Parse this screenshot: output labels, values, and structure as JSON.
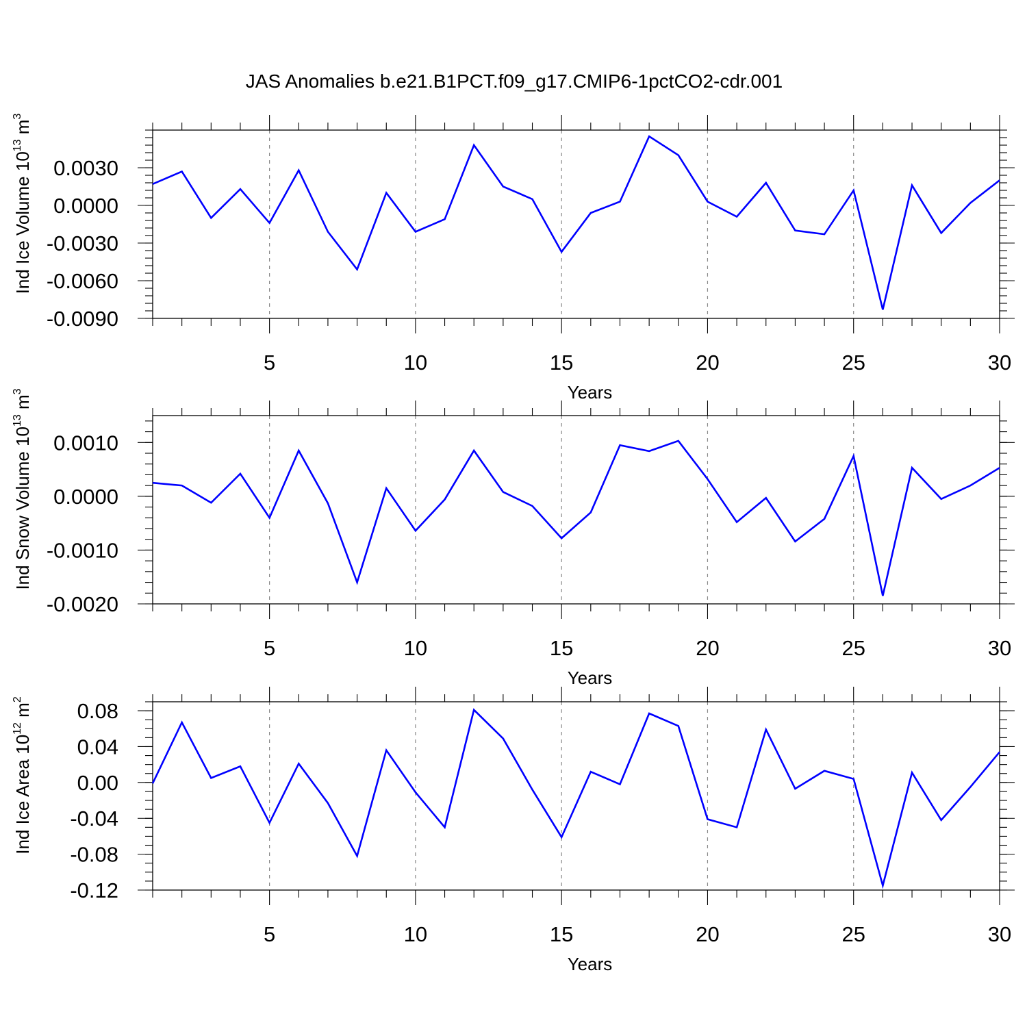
{
  "title": "JAS Anomalies b.e21.B1PCT.f09_g17.CMIP6-1pctCO2-cdr.001",
  "colors": {
    "line": "#0000ff",
    "grid": "#888888"
  },
  "chart_data": [
    {
      "type": "line",
      "xlabel": "Years",
      "ylabel_main": "Ind Ice Volume 10",
      "ylabel_exp": "13",
      "ylabel_unit": " m",
      "ylabel_unit_exp": "3",
      "xlim": [
        1,
        30
      ],
      "ylim": [
        -0.009,
        0.006
      ],
      "xticks": [
        5,
        10,
        15,
        20,
        25,
        30
      ],
      "yticks": [
        "0.0030",
        "0.0000",
        "-0.0030",
        "-0.0060",
        "-0.0090"
      ],
      "ytick_values": [
        0.003,
        0.0,
        -0.003,
        -0.006,
        -0.009
      ],
      "yminor_step": 0.0006,
      "x": [
        1,
        2,
        3,
        4,
        5,
        6,
        7,
        8,
        9,
        10,
        11,
        12,
        13,
        14,
        15,
        16,
        17,
        18,
        19,
        20,
        21,
        22,
        23,
        24,
        25,
        26,
        27,
        28,
        29,
        30
      ],
      "series": [
        {
          "values": [
            0.0017,
            0.0027,
            -0.001,
            0.0013,
            -0.0014,
            0.0028,
            -0.0021,
            -0.0051,
            0.001,
            -0.0021,
            -0.0011,
            0.0048,
            0.0015,
            0.0005,
            -0.0037,
            -0.0006,
            0.0003,
            0.0055,
            0.004,
            0.0003,
            -0.0009,
            0.0018,
            -0.002,
            -0.0023,
            0.0012,
            -0.0083,
            0.0016,
            -0.0022,
            0.0002,
            0.002
          ]
        }
      ]
    },
    {
      "type": "line",
      "xlabel": "Years",
      "ylabel_main": "Ind Snow Volume 10",
      "ylabel_exp": "13",
      "ylabel_unit": " m",
      "ylabel_unit_exp": "3",
      "xlim": [
        1,
        30
      ],
      "ylim": [
        -0.002,
        0.0015
      ],
      "xticks": [
        5,
        10,
        15,
        20,
        25,
        30
      ],
      "yticks": [
        "0.0010",
        "0.0000",
        "-0.0010",
        "-0.0020"
      ],
      "ytick_values": [
        0.001,
        0.0,
        -0.001,
        -0.002
      ],
      "yminor_step": 0.0002,
      "x": [
        1,
        2,
        3,
        4,
        5,
        6,
        7,
        8,
        9,
        10,
        11,
        12,
        13,
        14,
        15,
        16,
        17,
        18,
        19,
        20,
        21,
        22,
        23,
        24,
        25,
        26,
        27,
        28,
        29,
        30
      ],
      "series": [
        {
          "values": [
            0.00025,
            0.0002,
            -0.00012,
            0.00042,
            -0.0004,
            0.00085,
            -0.00013,
            -0.0016,
            0.00015,
            -0.00064,
            -6e-05,
            0.00085,
            8e-05,
            -0.00018,
            -0.00078,
            -0.0003,
            0.00095,
            0.00084,
            0.00103,
            0.00032,
            -0.00048,
            -3e-05,
            -0.00084,
            -0.00042,
            0.00075,
            -0.00185,
            0.00053,
            -5e-05,
            0.0002,
            0.00053
          ]
        }
      ]
    },
    {
      "type": "line",
      "xlabel": "Years",
      "ylabel_main": "Ind Ice Area 10",
      "ylabel_exp": "12",
      "ylabel_unit": " m",
      "ylabel_unit_exp": "2",
      "xlim": [
        1,
        30
      ],
      "ylim": [
        -0.12,
        0.09
      ],
      "xticks": [
        5,
        10,
        15,
        20,
        25,
        30
      ],
      "yticks": [
        "0.08",
        "0.04",
        "0.00",
        "-0.04",
        "-0.08",
        "-0.12"
      ],
      "ytick_values": [
        0.08,
        0.04,
        0.0,
        -0.04,
        -0.08,
        -0.12
      ],
      "yminor_step": 0.01,
      "x": [
        1,
        2,
        3,
        4,
        5,
        6,
        7,
        8,
        9,
        10,
        11,
        12,
        13,
        14,
        15,
        16,
        17,
        18,
        19,
        20,
        21,
        22,
        23,
        24,
        25,
        26,
        27,
        28,
        29,
        30
      ],
      "series": [
        {
          "values": [
            -0.001,
            0.067,
            0.005,
            0.018,
            -0.045,
            0.021,
            -0.023,
            -0.082,
            0.036,
            -0.011,
            -0.05,
            0.081,
            0.049,
            -0.008,
            -0.061,
            0.012,
            -0.002,
            0.077,
            0.063,
            -0.041,
            -0.05,
            0.059,
            -0.007,
            0.013,
            0.004,
            -0.115,
            0.011,
            -0.042,
            -0.005,
            0.034
          ]
        }
      ]
    }
  ]
}
